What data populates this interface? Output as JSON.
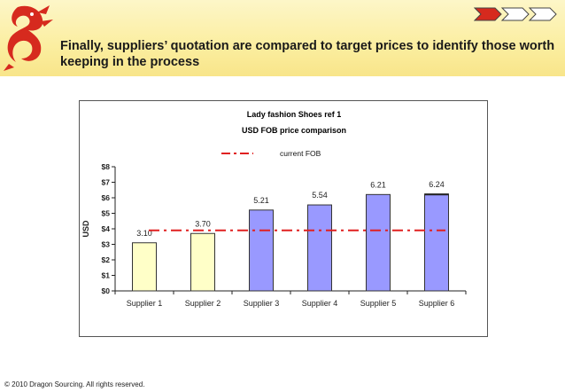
{
  "slide": {
    "title": "Finally, suppliers’ quotation are compared to target prices to identify those worth keeping in the process",
    "footer": "© 2010 Dragon Sourcing. All rights reserved.",
    "brand_color": "#d62a1e",
    "header_color": "#fbeea0"
  },
  "nav": {
    "icons": [
      "chevron-arrow-active",
      "chevron-arrow",
      "chevron-arrow"
    ]
  },
  "chart_data": {
    "type": "bar",
    "title": "Lady fashion Shoes ref 1",
    "subtitle": "USD FOB price comparison",
    "ylabel": "USD",
    "ylim": [
      0,
      8
    ],
    "yticks": [
      "$0",
      "$1",
      "$2",
      "$3",
      "$4",
      "$5",
      "$6",
      "$7",
      "$8"
    ],
    "categories": [
      "Supplier 1",
      "Supplier 2",
      "Supplier 3",
      "Supplier 4",
      "Supplier 5",
      "Supplier 6"
    ],
    "values": [
      3.1,
      3.7,
      5.21,
      5.54,
      6.21,
      6.24
    ],
    "labels": [
      "3.10",
      "3.70",
      "5.21",
      "5.54",
      "6.21",
      "6.24"
    ],
    "bar_colors": [
      "#ffffc8",
      "#ffffc8",
      "#9999ff",
      "#9999ff",
      "#9999ff",
      "#9999ff"
    ],
    "reference_line": {
      "name": "current FOB",
      "value": 3.9,
      "color": "#e02020"
    },
    "grid": false,
    "legend_position": "top-center"
  }
}
